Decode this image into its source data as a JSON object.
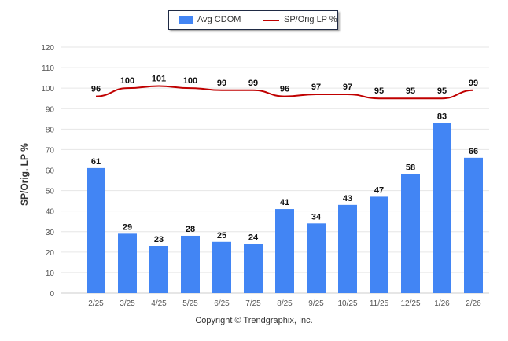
{
  "legend": {
    "bar_label": "Avg CDOM",
    "line_label": "SP/Orig LP %"
  },
  "credit": "Copyright © Trendgraphix, Inc.",
  "colors": {
    "bar": "#4285f4",
    "line": "#c00000",
    "grid": "#e6e6e6",
    "axis_text": "#555555"
  },
  "chart_data": {
    "type": "bar",
    "categories": [
      "2/25",
      "3/25",
      "4/25",
      "5/25",
      "6/25",
      "7/25",
      "8/25",
      "9/25",
      "10/25",
      "11/25",
      "12/25",
      "1/26",
      "2/26"
    ],
    "series": [
      {
        "name": "Avg CDOM",
        "type": "bar",
        "values": [
          61,
          29,
          23,
          28,
          25,
          24,
          41,
          34,
          43,
          47,
          58,
          83,
          66
        ]
      },
      {
        "name": "SP/Orig LP %",
        "type": "line",
        "values": [
          96,
          100,
          101,
          100,
          99,
          99,
          96,
          97,
          97,
          95,
          95,
          95,
          99
        ]
      }
    ],
    "xlabel": "",
    "ylabel": "SP/Orig. LP %",
    "ylim": [
      0,
      120
    ],
    "yticks": [
      0,
      10,
      20,
      30,
      40,
      50,
      60,
      70,
      80,
      90,
      100,
      110,
      120
    ],
    "grid": true,
    "legend_position": "top-center"
  }
}
